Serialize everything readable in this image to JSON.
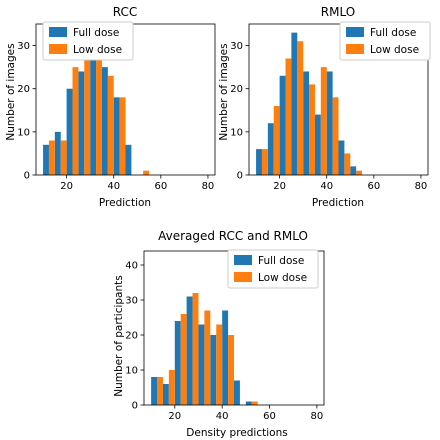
{
  "colors": {
    "full_dose": "#1f77b4",
    "low_dose": "#ff7f0e"
  },
  "chart_data": [
    {
      "type": "bar",
      "title": "RCC",
      "xlabel": "Prediction",
      "ylabel": "Number of images",
      "x": [
        12.5,
        17.5,
        22.5,
        27.5,
        32.5,
        37.5,
        42.5,
        47.5,
        52.5,
        57.5,
        62.5,
        67.5,
        72.5,
        77.5
      ],
      "xlim": [
        7,
        83
      ],
      "ylim": [
        0,
        35
      ],
      "xticks": [
        20,
        40,
        60,
        80
      ],
      "yticks": [
        0,
        10,
        20,
        30
      ],
      "legend": "top-left",
      "series": [
        {
          "name": "Full dose",
          "values": [
            7,
            10,
            20,
            24,
            27,
            25,
            18,
            7,
            0,
            0,
            0,
            0,
            0,
            0
          ]
        },
        {
          "name": "Low dose",
          "values": [
            8,
            8,
            25,
            32,
            32,
            23,
            18,
            0,
            1,
            0,
            0,
            0,
            0,
            0
          ]
        }
      ]
    },
    {
      "type": "bar",
      "title": "RMLO",
      "xlabel": "Prediction",
      "ylabel": "Number of images",
      "x": [
        12.5,
        17.5,
        22.5,
        27.5,
        32.5,
        37.5,
        42.5,
        47.5,
        52.5,
        57.5,
        62.5,
        67.5,
        72.5,
        77.5
      ],
      "xlim": [
        7,
        83
      ],
      "ylim": [
        0,
        35
      ],
      "xticks": [
        20,
        40,
        60,
        80
      ],
      "yticks": [
        0,
        10,
        20,
        30
      ],
      "legend": "top-right",
      "series": [
        {
          "name": "Full dose",
          "values": [
            6,
            12,
            23,
            33,
            24,
            14,
            24,
            8,
            2,
            0,
            0,
            0,
            0,
            0
          ]
        },
        {
          "name": "Low dose",
          "values": [
            6,
            16,
            27,
            31,
            21,
            25,
            18,
            5,
            1,
            0,
            0,
            0,
            0,
            0
          ]
        }
      ]
    },
    {
      "type": "bar",
      "title": "Averaged RCC and RMLO",
      "xlabel": "Density predictions",
      "ylabel": "Number of participants",
      "x": [
        12.5,
        17.5,
        22.5,
        27.5,
        32.5,
        37.5,
        42.5,
        47.5,
        52.5,
        57.5,
        62.5,
        67.5,
        72.5,
        77.5
      ],
      "xlim": [
        7,
        83
      ],
      "ylim": [
        0,
        44
      ],
      "xticks": [
        20,
        40,
        60,
        80
      ],
      "yticks": [
        0,
        10,
        20,
        30,
        40
      ],
      "legend": "top-right",
      "series": [
        {
          "name": "Full dose",
          "values": [
            8,
            6,
            24,
            31,
            23,
            20,
            27,
            7,
            1,
            0,
            0,
            0,
            0,
            0
          ]
        },
        {
          "name": "Low dose",
          "values": [
            8,
            10,
            26,
            32,
            27,
            23,
            20,
            0,
            1,
            0,
            0,
            0,
            0,
            0
          ]
        }
      ]
    }
  ]
}
